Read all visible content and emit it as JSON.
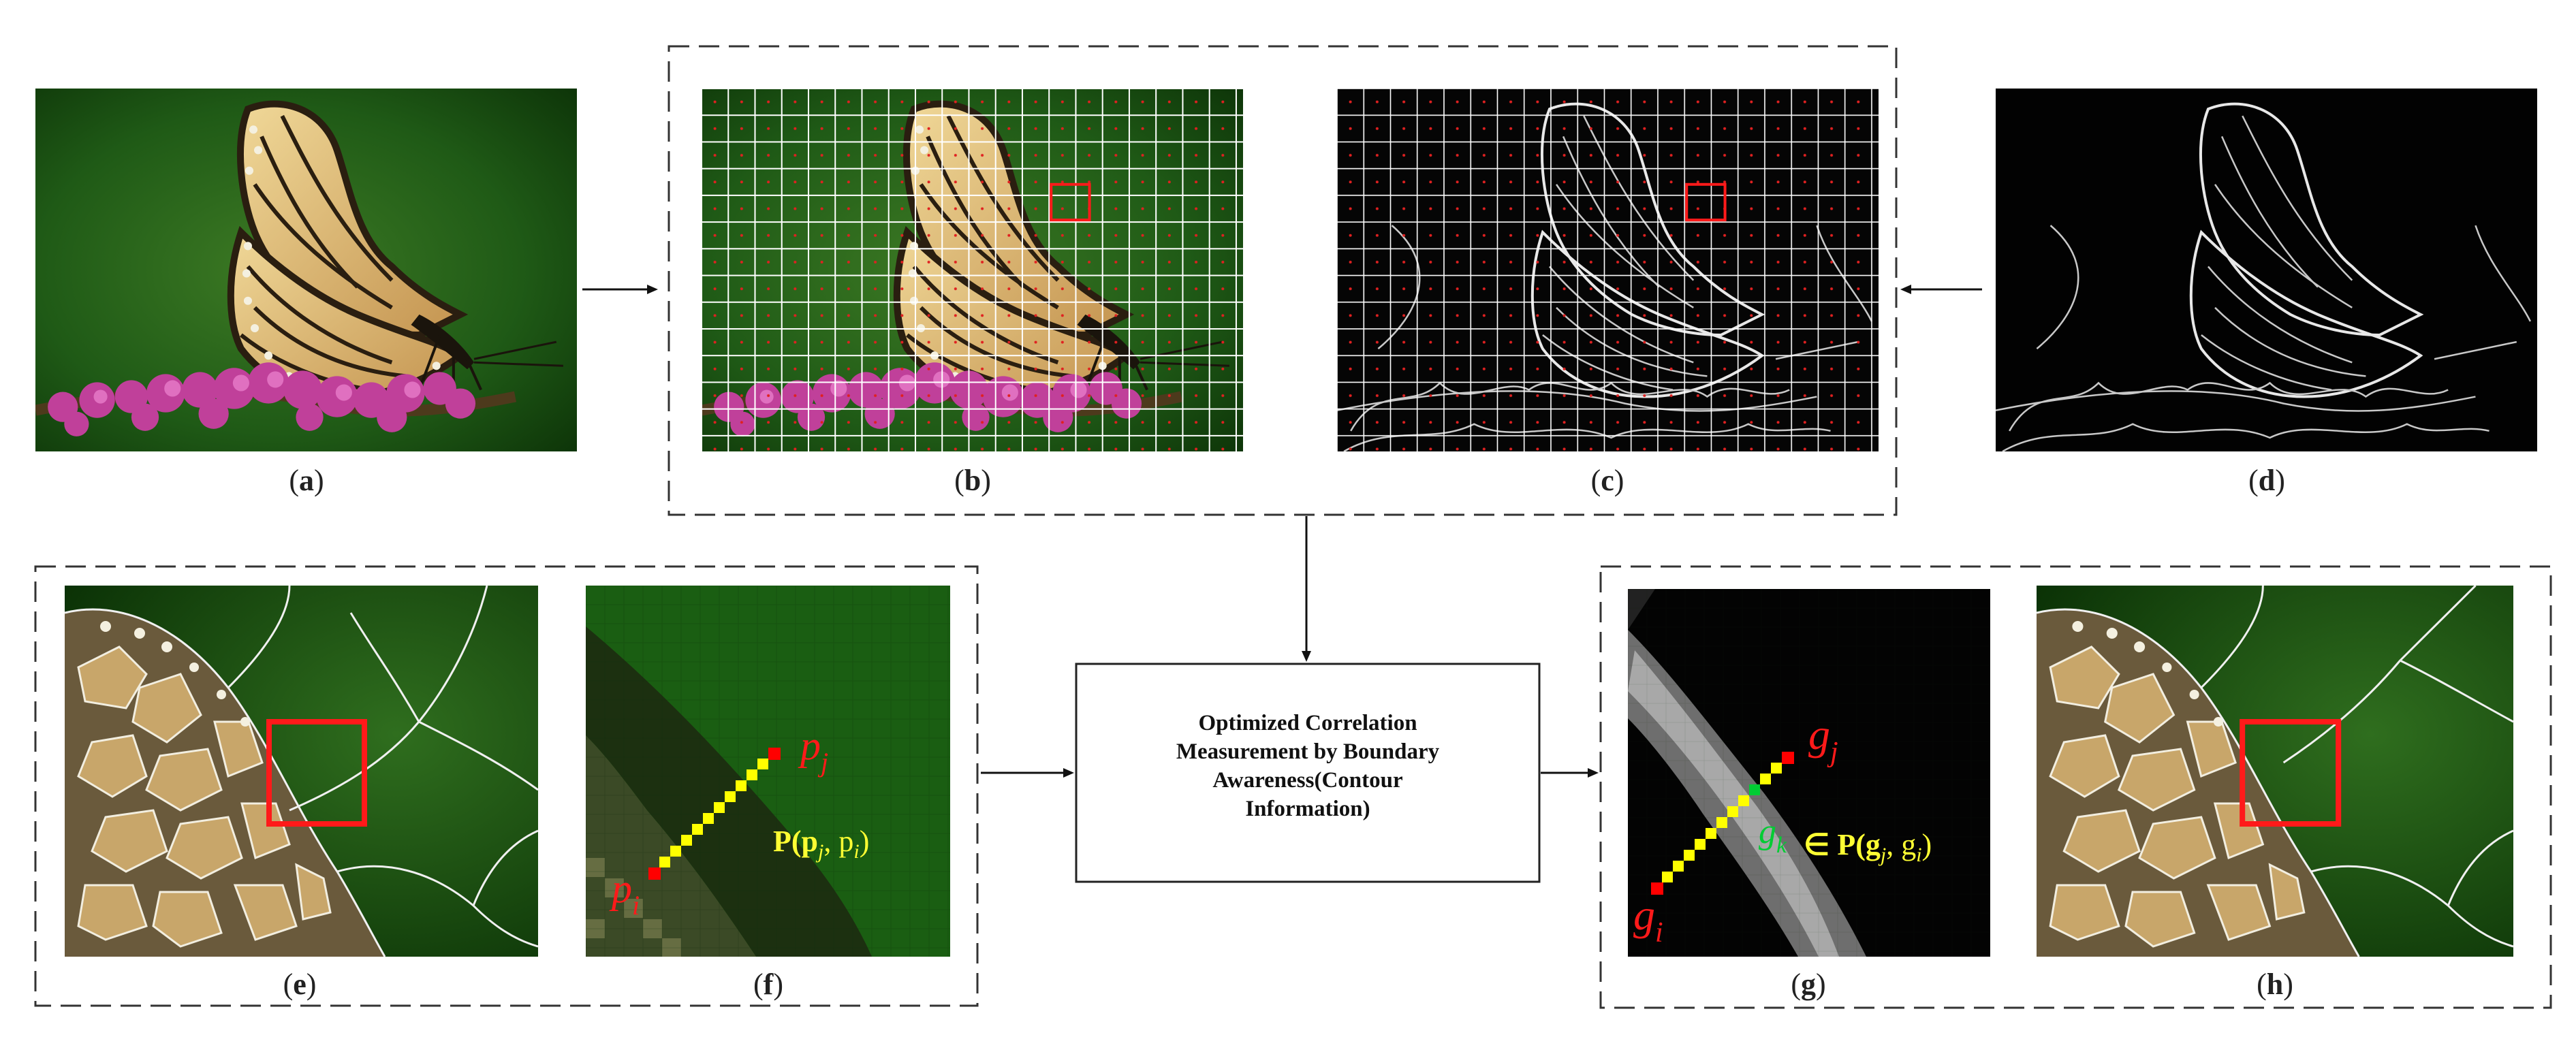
{
  "panels": {
    "a": "a",
    "b": "b",
    "c": "c",
    "d": "d",
    "e": "e",
    "f": "f",
    "g": "g",
    "h": "h"
  },
  "center_box": {
    "line1": "Optimized Correlation",
    "line2": "Measurement by Boundary",
    "line3": "Awareness(Contour",
    "line4": "Information)"
  },
  "panel_f": {
    "p_j": "p",
    "p_j_sub": "j",
    "p_i": "p",
    "p_i_sub": "i",
    "path_expr": "P(p",
    "path_expr_mid": ", p",
    "path_expr_end": ")"
  },
  "panel_g": {
    "g_j": "g",
    "g_j_sub": "j",
    "g_i": "g",
    "g_i_sub": "i",
    "g_k": "g",
    "g_k_sub": "k",
    "path_expr": "∈ P(g",
    "path_expr_mid": ", g",
    "path_expr_end": ")"
  },
  "colors": {
    "butterfly_wing": "#d8b678",
    "background_green": "#1e5a14",
    "flower_magenta": "#c0409a",
    "path_yellow": "#ffff00",
    "endpoint_red": "#ff0000",
    "highlight_green": "#00cc33",
    "grid_white": "#ffffff",
    "marker_red": "#e02020"
  }
}
